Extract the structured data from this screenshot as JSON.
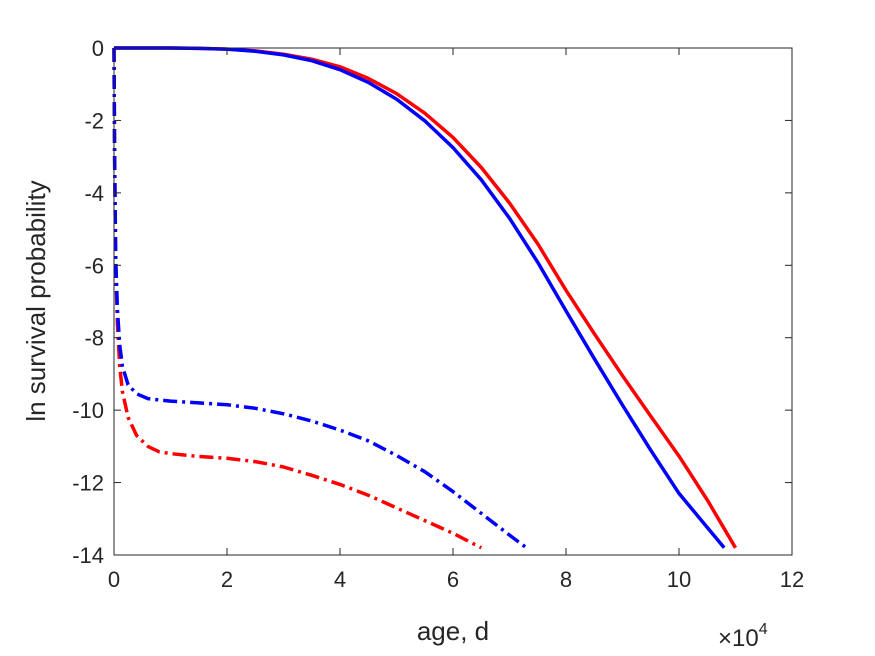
{
  "chart_data": {
    "type": "line",
    "title": "",
    "xlabel": "age, d",
    "ylabel": "ln survival probability",
    "x_exponent_base": "×10",
    "x_exponent_power": "4",
    "xlim": [
      0,
      120000
    ],
    "ylim": [
      -14,
      0
    ],
    "xticks": [
      0,
      20000,
      40000,
      60000,
      80000,
      100000,
      120000
    ],
    "xtick_labels": [
      "0",
      "2",
      "4",
      "6",
      "8",
      "10",
      "12"
    ],
    "yticks": [
      0,
      -2,
      -4,
      -6,
      -8,
      -10,
      -12,
      -14
    ],
    "ytick_labels": [
      "0",
      "-2",
      "-4",
      "-6",
      "-8",
      "-10",
      "-12",
      "-14"
    ],
    "grid": false,
    "legend": "none",
    "colors": {
      "red": "#ff0000",
      "blue": "#0000ff",
      "axis": "#262626"
    },
    "series": [
      {
        "color": "#ff0000",
        "style": "solid",
        "x": [
          0,
          5000,
          10000,
          15000,
          20000,
          25000,
          30000,
          35000,
          40000,
          45000,
          50000,
          55000,
          60000,
          65000,
          70000,
          75000,
          80000,
          85000,
          90000,
          95000,
          100000,
          105000,
          110000
        ],
        "y": [
          0,
          0,
          0,
          -0.01,
          -0.03,
          -0.08,
          -0.17,
          -0.31,
          -0.52,
          -0.84,
          -1.26,
          -1.8,
          -2.47,
          -3.3,
          -4.28,
          -5.41,
          -6.69,
          -7.89,
          -9.05,
          -10.17,
          -11.27,
          -12.48,
          -13.8
        ]
      },
      {
        "color": "#0000ff",
        "style": "solid",
        "x": [
          0,
          5000,
          10000,
          15000,
          20000,
          25000,
          30000,
          35000,
          40000,
          45000,
          50000,
          55000,
          60000,
          65000,
          70000,
          75000,
          80000,
          85000,
          90000,
          95000,
          100000,
          105000,
          108000
        ],
        "y": [
          0,
          0,
          0,
          -0.01,
          -0.03,
          -0.09,
          -0.19,
          -0.35,
          -0.6,
          -0.95,
          -1.41,
          -2.01,
          -2.75,
          -3.64,
          -4.7,
          -5.92,
          -7.26,
          -8.58,
          -9.86,
          -11.11,
          -12.3,
          -13.24,
          -13.8
        ]
      },
      {
        "color": "#ff0000",
        "style": "dashdot",
        "x": [
          0,
          100,
          300,
          600,
          1000,
          1500,
          2500,
          4000,
          6000,
          8000,
          10000,
          15000,
          20000,
          25000,
          30000,
          35000,
          40000,
          45000,
          50000,
          55000,
          60000,
          65000
        ],
        "y": [
          0,
          -3,
          -6,
          -7.6,
          -8.8,
          -9.5,
          -10.2,
          -10.7,
          -11,
          -11.15,
          -11.2,
          -11.28,
          -11.33,
          -11.42,
          -11.57,
          -11.8,
          -12.05,
          -12.35,
          -12.7,
          -13.05,
          -13.4,
          -13.8
        ]
      },
      {
        "color": "#0000ff",
        "style": "dashdot",
        "x": [
          0,
          100,
          300,
          600,
          1000,
          1500,
          2500,
          4000,
          6000,
          8000,
          10000,
          15000,
          20000,
          25000,
          30000,
          35000,
          40000,
          45000,
          50000,
          55000,
          60000,
          65000,
          70000,
          73000
        ],
        "y": [
          0,
          -3,
          -5.8,
          -7.2,
          -8.2,
          -8.8,
          -9.3,
          -9.55,
          -9.68,
          -9.72,
          -9.75,
          -9.8,
          -9.85,
          -9.95,
          -10.1,
          -10.3,
          -10.55,
          -10.85,
          -11.25,
          -11.7,
          -12.25,
          -12.85,
          -13.45,
          -13.8
        ]
      }
    ]
  }
}
